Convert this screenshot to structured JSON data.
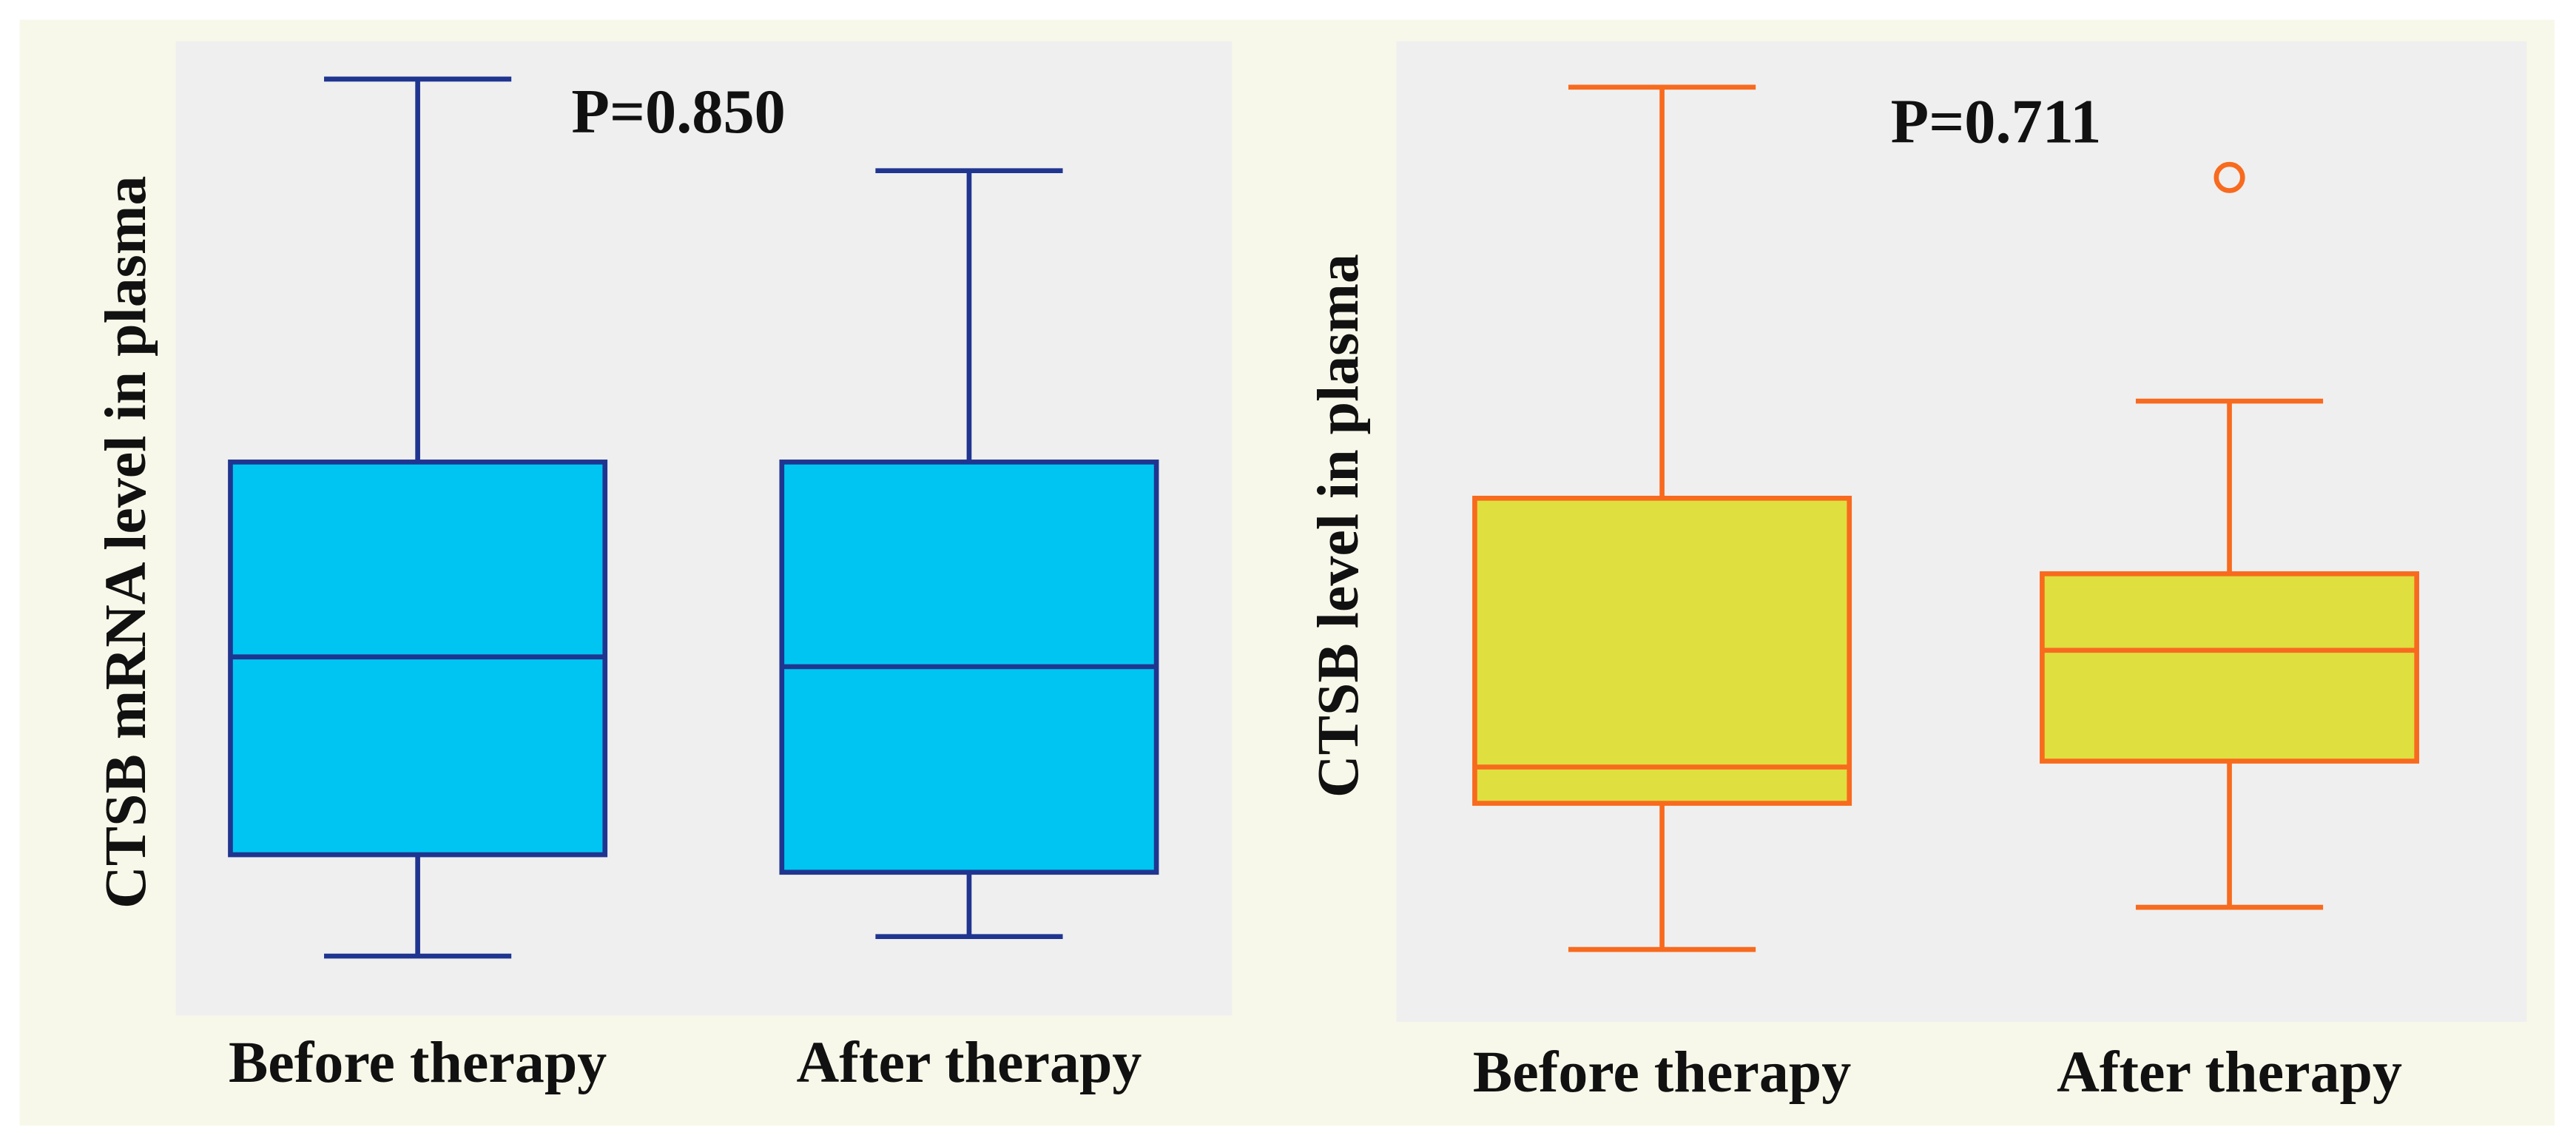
{
  "chart_data": [
    {
      "type": "box",
      "annotation": "P=0.850",
      "y_label": "CTSB mRNA level in plasma",
      "categories": [
        "Before therapy",
        "After therapy"
      ],
      "fill_color": "#00c5f2",
      "line_color": "#1f3590",
      "ylim": [
        0,
        100
      ],
      "boxes": [
        {
          "min": 6.1,
          "q1": 16.5,
          "median": 36.8,
          "q3": 56.8,
          "max": 96.1,
          "outliers": []
        },
        {
          "min": 8.1,
          "q1": 14.7,
          "median": 35.8,
          "q3": 56.8,
          "max": 86.7,
          "outliers": []
        }
      ]
    },
    {
      "type": "box",
      "annotation": "P=0.711",
      "y_label": "CTSB level in plasma",
      "categories": [
        "Before therapy",
        "After therapy"
      ],
      "fill_color": "#dfdf40",
      "line_color": "#f86a1e",
      "ylim": [
        0,
        100
      ],
      "boxes": [
        {
          "min": 7.4,
          "q1": 22.3,
          "median": 26.0,
          "q3": 53.4,
          "max": 95.3,
          "outliers": []
        },
        {
          "min": 11.7,
          "q1": 26.6,
          "median": 37.9,
          "q3": 45.7,
          "max": 63.3,
          "outliers": [
            86.1
          ]
        }
      ]
    }
  ]
}
